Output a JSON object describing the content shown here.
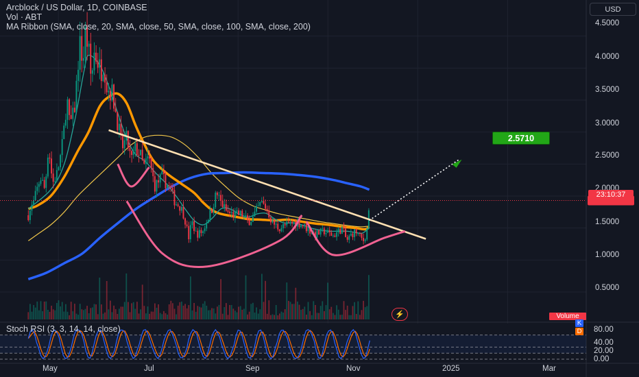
{
  "legend": {
    "title": "Arcblock / US Dollar, 1D, COINBASE",
    "volume": "Vol · ABT",
    "ribbon": "MA Ribbon (SMA, close, 20, SMA, close, 50, SMA, close, 100, SMA, close, 200)",
    "stoch": "Stoch RSI (3, 3, 14, 14, close)"
  },
  "currency_button": "USD",
  "countdown": "23:10:37",
  "target_label": "2.5710",
  "volume_label": "Volume",
  "stoch_k_badge": "K",
  "stoch_d_badge": "D",
  "colors": {
    "background": "#131722",
    "up": "#089981",
    "down": "#f23645",
    "sma20": "#26a69a",
    "sma50": "#ff9800",
    "sma100": "#f0c64a",
    "sma200": "#2962ff",
    "trendline": "#ffe0b2",
    "cup": "#f06292",
    "target": "#22a617",
    "stoch_k": "#2962ff",
    "stoch_d": "#ff6d00"
  },
  "chart_data": {
    "type": "candlestick",
    "y_axis_labels": [
      "4.5000",
      "4.0000",
      "3.5000",
      "3.0000",
      "2.5000",
      "2.0000",
      "1.5000",
      "1.0000",
      "0.5000"
    ],
    "x_axis_labels": [
      "May",
      "Jul",
      "Sep",
      "Nov",
      "2025",
      "Mar"
    ],
    "x_axis_months": [
      4,
      6,
      8,
      10,
      12,
      14
    ],
    "ylim": [
      0.05,
      4.85
    ],
    "xlim": [
      2.7,
      15.75
    ],
    "last_price": 1.93,
    "target_price": 2.571,
    "stoch_rsi_labels": [
      "80.00",
      "40.00",
      "20.00",
      "0.00"
    ],
    "stoch_rsi_levels": [
      80,
      40,
      20,
      0
    ],
    "price_path": [
      [
        3.33,
        1.7
      ],
      [
        3.45,
        1.9
      ],
      [
        3.6,
        2.3
      ],
      [
        3.7,
        2.1
      ],
      [
        3.78,
        2.8
      ],
      [
        3.87,
        2.2
      ],
      [
        3.97,
        2.35
      ],
      [
        4.07,
        2.7
      ],
      [
        4.12,
        3.0
      ],
      [
        4.19,
        3.55
      ],
      [
        4.25,
        3.1
      ],
      [
        4.35,
        3.3
      ],
      [
        4.41,
        3.8
      ],
      [
        4.47,
        4.4
      ],
      [
        4.55,
        4.1
      ],
      [
        4.6,
        4.55
      ],
      [
        4.67,
        4.3
      ],
      [
        4.73,
        3.8
      ],
      [
        4.8,
        4.25
      ],
      [
        4.88,
        4.1
      ],
      [
        4.95,
        3.95
      ],
      [
        5.01,
        4.1
      ],
      [
        5.08,
        3.7
      ],
      [
        5.2,
        3.6
      ],
      [
        5.32,
        3.15
      ],
      [
        5.42,
        2.75
      ],
      [
        5.52,
        2.9
      ],
      [
        5.62,
        2.55
      ],
      [
        5.72,
        2.75
      ],
      [
        5.82,
        2.65
      ],
      [
        5.9,
        2.45
      ],
      [
        6.01,
        2.6
      ],
      [
        6.15,
        2.15
      ],
      [
        6.3,
        2.3
      ],
      [
        6.5,
        2.1
      ],
      [
        6.6,
        1.9
      ],
      [
        6.7,
        1.85
      ],
      [
        6.8,
        1.7
      ],
      [
        6.9,
        1.35
      ],
      [
        6.97,
        1.6
      ],
      [
        7.07,
        1.4
      ],
      [
        7.22,
        1.45
      ],
      [
        7.32,
        1.65
      ],
      [
        7.42,
        1.8
      ],
      [
        7.52,
        2.05
      ],
      [
        7.62,
        1.9
      ],
      [
        7.75,
        1.75
      ],
      [
        7.92,
        1.7
      ],
      [
        8.07,
        1.72
      ],
      [
        8.22,
        1.6
      ],
      [
        8.32,
        1.65
      ],
      [
        8.42,
        1.78
      ],
      [
        8.52,
        1.9
      ],
      [
        8.64,
        1.8
      ],
      [
        8.75,
        1.6
      ],
      [
        8.9,
        1.5
      ],
      [
        9.1,
        1.55
      ],
      [
        9.32,
        1.6
      ],
      [
        9.52,
        1.5
      ],
      [
        9.72,
        1.4
      ],
      [
        9.92,
        1.45
      ],
      [
        10.12,
        1.38
      ],
      [
        10.32,
        1.5
      ],
      [
        10.42,
        1.3
      ],
      [
        10.52,
        1.4
      ],
      [
        10.62,
        1.45
      ],
      [
        10.72,
        1.35
      ],
      [
        10.8,
        1.3
      ],
      [
        10.87,
        1.48
      ],
      [
        10.93,
        1.93
      ]
    ],
    "sma20_path": [
      [
        3.33,
        1.8
      ],
      [
        3.83,
        2.1
      ],
      [
        4.13,
        2.5
      ],
      [
        4.37,
        3.2
      ],
      [
        4.57,
        3.95
      ],
      [
        4.67,
        4.2
      ],
      [
        4.92,
        4.05
      ],
      [
        5.13,
        3.7
      ],
      [
        5.32,
        3.3
      ],
      [
        5.52,
        2.9
      ],
      [
        5.72,
        2.65
      ],
      [
        5.92,
        2.55
      ],
      [
        6.18,
        2.35
      ],
      [
        6.42,
        2.18
      ],
      [
        6.62,
        2.0
      ],
      [
        6.82,
        1.8
      ],
      [
        7.02,
        1.62
      ],
      [
        7.22,
        1.55
      ],
      [
        7.42,
        1.65
      ],
      [
        7.62,
        1.8
      ],
      [
        7.82,
        1.8
      ],
      [
        8.02,
        1.72
      ],
      [
        8.22,
        1.67
      ],
      [
        8.42,
        1.72
      ],
      [
        8.62,
        1.73
      ],
      [
        8.82,
        1.64
      ],
      [
        9.02,
        1.58
      ],
      [
        9.22,
        1.58
      ],
      [
        9.42,
        1.55
      ],
      [
        9.62,
        1.5
      ],
      [
        9.82,
        1.47
      ],
      [
        10.02,
        1.45
      ],
      [
        10.22,
        1.45
      ],
      [
        10.42,
        1.45
      ],
      [
        10.62,
        1.43
      ],
      [
        10.77,
        1.42
      ],
      [
        10.92,
        1.5
      ]
    ],
    "sma50_path": [
      [
        3.33,
        1.8
      ],
      [
        3.53,
        1.85
      ],
      [
        3.83,
        2.0
      ],
      [
        4.13,
        2.3
      ],
      [
        4.43,
        2.7
      ],
      [
        4.67,
        3.0
      ],
      [
        4.92,
        3.4
      ],
      [
        5.12,
        3.55
      ],
      [
        5.32,
        3.6
      ],
      [
        5.52,
        3.45
      ],
      [
        5.72,
        3.1
      ],
      [
        5.92,
        2.8
      ],
      [
        6.12,
        2.55
      ],
      [
        6.42,
        2.35
      ],
      [
        6.72,
        2.2
      ],
      [
        7.02,
        2.05
      ],
      [
        7.22,
        1.9
      ],
      [
        7.42,
        1.78
      ],
      [
        7.62,
        1.72
      ],
      [
        7.92,
        1.68
      ],
      [
        8.22,
        1.64
      ],
      [
        8.52,
        1.63
      ],
      [
        8.82,
        1.62
      ],
      [
        9.12,
        1.63
      ],
      [
        9.42,
        1.6
      ],
      [
        9.72,
        1.57
      ],
      [
        10.02,
        1.55
      ],
      [
        10.32,
        1.52
      ],
      [
        10.62,
        1.5
      ],
      [
        10.82,
        1.48
      ],
      [
        10.92,
        1.52
      ]
    ],
    "sma100_path": [
      [
        3.33,
        1.3
      ],
      [
        3.53,
        1.4
      ],
      [
        3.83,
        1.55
      ],
      [
        4.13,
        1.75
      ],
      [
        4.43,
        2.0
      ],
      [
        4.72,
        2.2
      ],
      [
        5.02,
        2.4
      ],
      [
        5.32,
        2.6
      ],
      [
        5.62,
        2.8
      ],
      [
        5.92,
        2.92
      ],
      [
        6.22,
        2.95
      ],
      [
        6.52,
        2.92
      ],
      [
        6.82,
        2.8
      ],
      [
        7.12,
        2.6
      ],
      [
        7.42,
        2.35
      ],
      [
        7.72,
        2.15
      ],
      [
        8.02,
        1.97
      ],
      [
        8.32,
        1.85
      ],
      [
        8.62,
        1.78
      ],
      [
        8.92,
        1.72
      ],
      [
        9.22,
        1.68
      ],
      [
        9.52,
        1.64
      ],
      [
        9.82,
        1.6
      ],
      [
        10.12,
        1.57
      ],
      [
        10.42,
        1.54
      ],
      [
        10.72,
        1.52
      ],
      [
        10.92,
        1.53
      ]
    ],
    "sma200_path": [
      [
        3.33,
        0.7
      ],
      [
        3.73,
        0.8
      ],
      [
        4.13,
        0.95
      ],
      [
        4.53,
        1.1
      ],
      [
        4.93,
        1.35
      ],
      [
        5.33,
        1.58
      ],
      [
        5.73,
        1.8
      ],
      [
        6.13,
        1.98
      ],
      [
        6.53,
        2.15
      ],
      [
        6.93,
        2.28
      ],
      [
        7.33,
        2.35
      ],
      [
        7.73,
        2.36
      ],
      [
        8.13,
        2.37
      ],
      [
        8.53,
        2.36
      ],
      [
        8.93,
        2.35
      ],
      [
        9.33,
        2.33
      ],
      [
        9.73,
        2.3
      ],
      [
        10.13,
        2.25
      ],
      [
        10.43,
        2.2
      ],
      [
        10.73,
        2.15
      ],
      [
        10.92,
        2.1
      ]
    ],
    "trendline": [
      [
        5.12,
        3.03
      ],
      [
        12.18,
        1.33
      ]
    ],
    "projection": [
      [
        10.92,
        1.62
      ],
      [
        12.92,
        2.571
      ]
    ],
    "left_cup": [
      [
        5.32,
        2.5
      ],
      [
        5.62,
        2.15
      ],
      [
        6.02,
        2.45
      ]
    ],
    "main_cup": [
      [
        5.52,
        1.92
      ],
      [
        6.32,
        1.1
      ],
      [
        7.32,
        0.9
      ],
      [
        8.92,
        1.3
      ],
      [
        9.42,
        1.7
      ]
    ],
    "right_cup": [
      [
        9.52,
        1.6
      ],
      [
        10.12,
        1.08
      ],
      [
        11.27,
        1.35
      ],
      [
        11.72,
        1.45
      ]
    ]
  }
}
